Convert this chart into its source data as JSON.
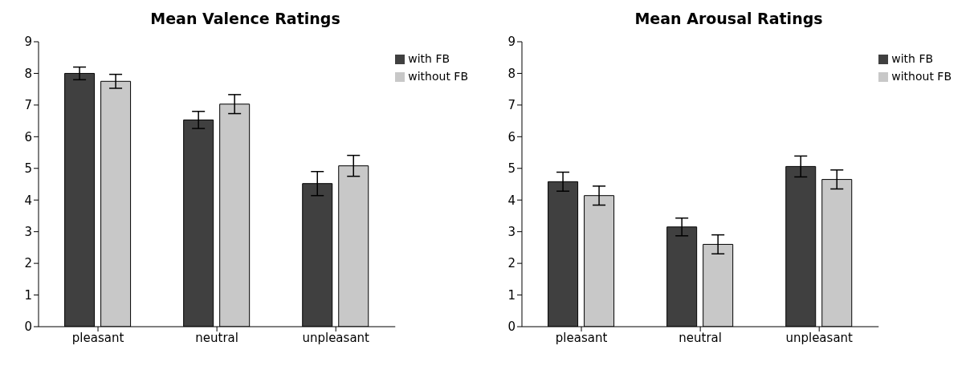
{
  "chart_data": [
    {
      "type": "bar",
      "title": "Mean Valence Ratings",
      "categories": [
        "pleasant",
        "neutral",
        "unpleasant"
      ],
      "series": [
        {
          "name": "with FB",
          "color": "#404040",
          "values": [
            8.0,
            6.53,
            4.52
          ],
          "errors": [
            0.2,
            0.27,
            0.38
          ]
        },
        {
          "name": "without FB",
          "color": "#c8c8c8",
          "values": [
            7.75,
            7.03,
            5.08
          ],
          "errors": [
            0.22,
            0.3,
            0.33
          ]
        }
      ],
      "ylim": [
        0,
        9
      ],
      "yticks": [
        0,
        1,
        2,
        3,
        4,
        5,
        6,
        7,
        8,
        9
      ],
      "grid": false,
      "legend": "top right"
    },
    {
      "type": "bar",
      "title": "Mean Arousal Ratings",
      "categories": [
        "pleasant",
        "neutral",
        "unpleasant"
      ],
      "series": [
        {
          "name": "with FB",
          "color": "#404040",
          "values": [
            4.58,
            3.15,
            5.06
          ],
          "errors": [
            0.3,
            0.28,
            0.33
          ]
        },
        {
          "name": "without FB",
          "color": "#c8c8c8",
          "values": [
            4.14,
            2.6,
            4.65
          ],
          "errors": [
            0.3,
            0.3,
            0.3
          ]
        }
      ],
      "ylim": [
        0,
        9
      ],
      "yticks": [
        0,
        1,
        2,
        3,
        4,
        5,
        6,
        7,
        8,
        9
      ],
      "grid": false,
      "legend": "top right"
    }
  ]
}
